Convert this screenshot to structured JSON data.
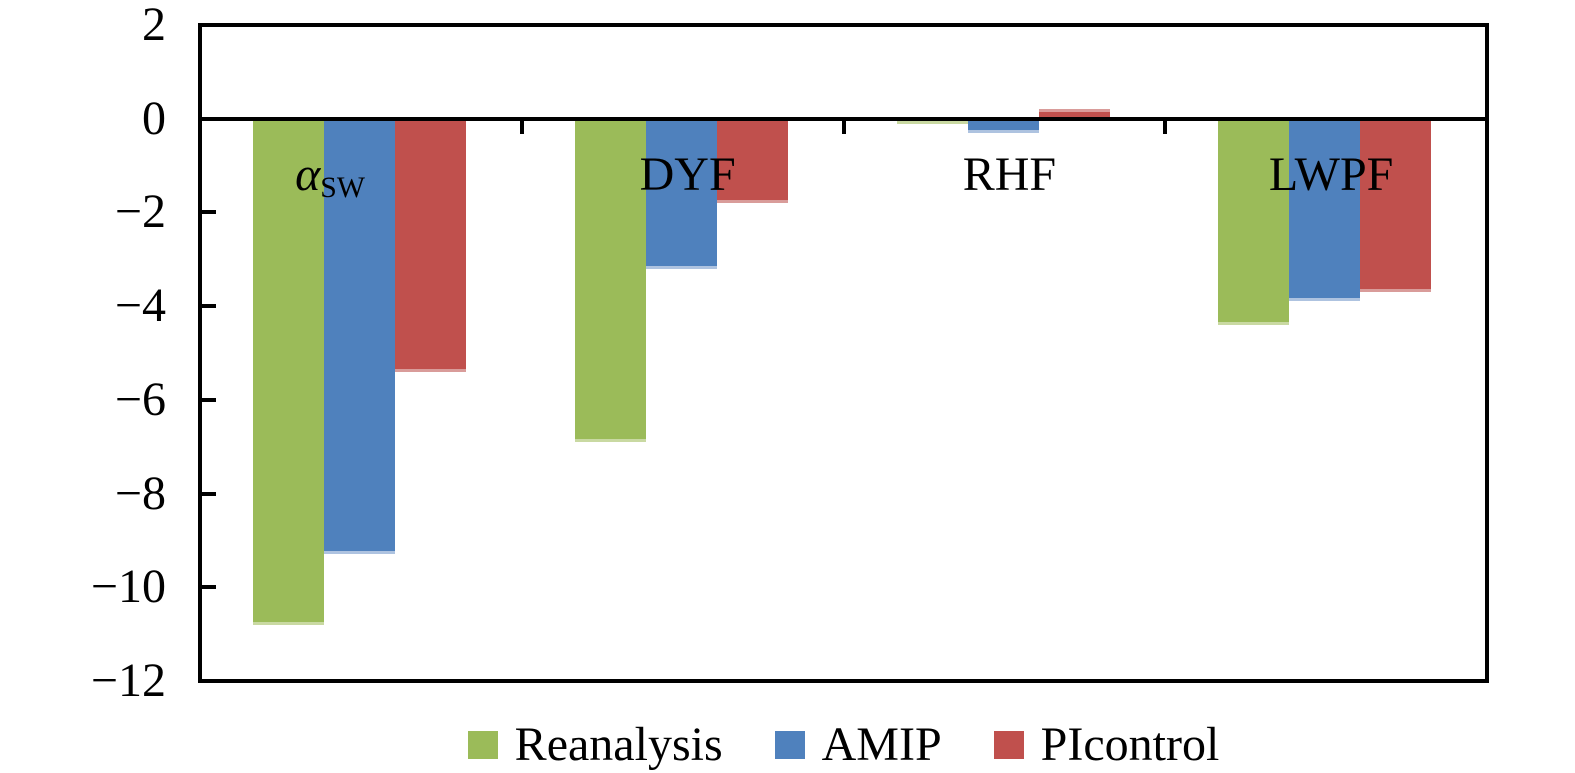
{
  "figure": {
    "background": "#ffffff",
    "axis_color": "#000000"
  },
  "chart_data": {
    "type": "bar",
    "title": "",
    "xlabel": "",
    "ylabel": "",
    "categories": [
      {
        "key": "asw",
        "label": "α",
        "subscript": "SW",
        "italic": true
      },
      {
        "key": "dyf",
        "label": "DYF"
      },
      {
        "key": "rhf",
        "label": "RHF"
      },
      {
        "key": "lwpf",
        "label": "LWPF"
      }
    ],
    "series": [
      {
        "name": "Reanalysis",
        "color": "#9bbb59",
        "edge_color": "#c9d9a2",
        "values": [
          -10.8,
          -6.9,
          -0.1,
          -4.4
        ]
      },
      {
        "name": "AMIP",
        "color": "#4f81bd",
        "edge_color": "#aec3e0",
        "values": [
          -9.3,
          -3.2,
          -0.3,
          -3.9
        ]
      },
      {
        "name": "PIcontrol",
        "color": "#c0504d",
        "edge_color": "#d99c9a",
        "values": [
          -5.4,
          -1.8,
          0.2,
          -3.7
        ]
      }
    ],
    "yticks": [
      {
        "label": "2",
        "value": 2
      },
      {
        "label": "0",
        "value": 0
      },
      {
        "label": "−2",
        "value": -2
      },
      {
        "label": "−4",
        "value": -4
      },
      {
        "label": "−6",
        "value": -6
      },
      {
        "label": "−8",
        "value": -8
      },
      {
        "label": "−10",
        "value": -10
      },
      {
        "label": "−12",
        "value": -12
      }
    ],
    "ylim": [
      -12,
      2
    ],
    "grid": false,
    "legend_position": "bottom"
  }
}
